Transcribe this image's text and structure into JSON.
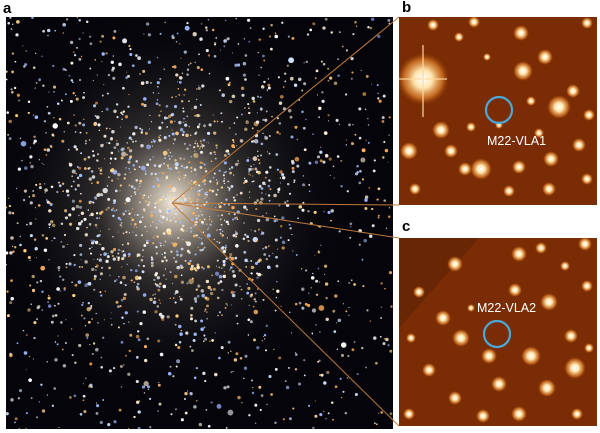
{
  "panel_letters": {
    "a": "a",
    "b": "b",
    "c": "c"
  },
  "insets": {
    "b": {
      "source_label": "M22-VLA1"
    },
    "c": {
      "source_label": "M22-VLA2"
    }
  },
  "colors": {
    "background": "#ffffff",
    "connector": "#c07a3a",
    "marker_circle": "#4aa8d8",
    "inset_background": "#7a2d05",
    "inset_star": "#ffe6b0"
  }
}
